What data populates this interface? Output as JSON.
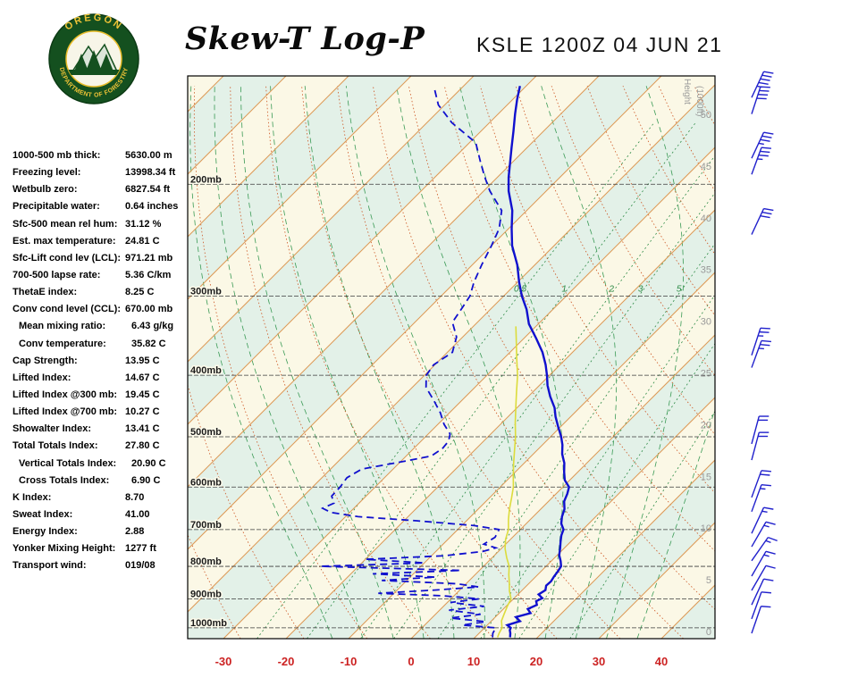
{
  "header": {
    "title": "Skew-T Log-P",
    "station": "KSLE 1200Z 04 JUN 21"
  },
  "logo": {
    "top_text": "OREGON",
    "bottom_text": "DEPARTMENT OF FORESTRY"
  },
  "indices": [
    {
      "label": "1000-500 mb thick:",
      "value": "5630.00 m",
      "indent": false
    },
    {
      "label": "Freezing level:",
      "value": "13998.34 ft",
      "indent": false
    },
    {
      "label": "Wetbulb zero:",
      "value": "6827.54 ft",
      "indent": false
    },
    {
      "label": "Precipitable water:",
      "value": "0.64 inches",
      "indent": false
    },
    {
      "label": "Sfc-500 mean rel hum:",
      "value": "31.12 %",
      "indent": false
    },
    {
      "label": "Est. max temperature:",
      "value": "24.81 C",
      "indent": false
    },
    {
      "label": "Sfc-Lift cond lev (LCL):",
      "value": "971.21 mb",
      "indent": false
    },
    {
      "label": "700-500 lapse rate:",
      "value": "5.36 C/km",
      "indent": false
    },
    {
      "label": "ThetaE index:",
      "value": "8.25 C",
      "indent": false
    },
    {
      "label": "Conv cond level (CCL):",
      "value": "670.00 mb",
      "indent": false
    },
    {
      "label": "Mean mixing ratio:",
      "value": "6.43 g/kg",
      "indent": true
    },
    {
      "label": "Conv temperature:",
      "value": "35.82 C",
      "indent": true
    },
    {
      "label": "Cap Strength:",
      "value": "13.95 C",
      "indent": false
    },
    {
      "label": "Lifted Index:",
      "value": "14.67 C",
      "indent": false
    },
    {
      "label": "Lifted Index @300 mb:",
      "value": "19.45 C",
      "indent": false
    },
    {
      "label": "Lifted Index @700 mb:",
      "value": "10.27 C",
      "indent": false
    },
    {
      "label": "Showalter Index:",
      "value": "13.41 C",
      "indent": false
    },
    {
      "label": "Total Totals Index:",
      "value": "27.80 C",
      "indent": false
    },
    {
      "label": "Vertical Totals Index:",
      "value": "20.90 C",
      "indent": true
    },
    {
      "label": "Cross Totals Index:",
      "value": "6.90 C",
      "indent": true
    },
    {
      "label": "K Index:",
      "value": "8.70",
      "indent": false
    },
    {
      "label": "Sweat Index:",
      "value": "41.00",
      "indent": false
    },
    {
      "label": "Energy Index:",
      "value": "2.88",
      "indent": false
    },
    {
      "label": "Yonker Mixing Height:",
      "value": "1277 ft",
      "indent": false
    },
    {
      "label": "Transport wind:",
      "value": "019/08",
      "indent": false
    }
  ],
  "chart_data": {
    "type": "line",
    "title": "Skew-T Log-P",
    "subtitle": "KSLE 1200Z 04 JUN 21",
    "x_axis": {
      "ticks": [
        -30,
        -20,
        -10,
        0,
        10,
        20,
        30,
        40
      ],
      "skew_deg": 45
    },
    "y_axis": {
      "scale": "log",
      "unit": "mb",
      "ticks": [
        200,
        300,
        400,
        500,
        600,
        700,
        800,
        900,
        1000
      ],
      "range": [
        135,
        1040
      ]
    },
    "height_axis": {
      "label": "Height",
      "sublabel": "(1000ft)",
      "ticks": [
        0,
        5,
        10,
        15,
        20,
        25,
        30,
        35,
        40,
        45,
        50
      ]
    },
    "mixing_ratio_labels": [
      0.5,
      1,
      2,
      3,
      5
    ],
    "grid": {
      "isotherms": {
        "min": -120,
        "max": 40,
        "step": 10
      },
      "dry_adiabats": {
        "min": -30,
        "max": 140,
        "step": 10
      },
      "moist_adiabats": {
        "min": -15,
        "max": 35,
        "step": 5
      },
      "mixing_ratios": [
        0.5,
        1,
        2,
        3,
        5,
        8,
        12,
        20
      ]
    },
    "series": [
      {
        "name": "temperature",
        "units": [
          "mb",
          "C"
        ],
        "style": "solid",
        "points": [
          [
            1035,
            15.6
          ],
          [
            1020,
            15.0
          ],
          [
            1008,
            14.4
          ],
          [
            1000,
            14.2
          ],
          [
            990,
            13.2
          ],
          [
            976,
            14.6
          ],
          [
            962,
            13.3
          ],
          [
            948,
            15.0
          ],
          [
            934,
            13.9
          ],
          [
            920,
            14.7
          ],
          [
            908,
            14.0
          ],
          [
            898,
            14.5
          ],
          [
            886,
            13.3
          ],
          [
            872,
            13.7
          ],
          [
            858,
            13.1
          ],
          [
            845,
            13.2
          ],
          [
            830,
            12.9
          ],
          [
            815,
            12.7
          ],
          [
            800,
            12.4
          ],
          [
            785,
            11.5
          ],
          [
            768,
            10.3
          ],
          [
            750,
            9.4
          ],
          [
            732,
            8.4
          ],
          [
            715,
            7.5
          ],
          [
            700,
            6.9
          ],
          [
            685,
            5.6
          ],
          [
            668,
            4.6
          ],
          [
            650,
            3.8
          ],
          [
            632,
            2.5
          ],
          [
            615,
            1.8
          ],
          [
            600,
            1.0
          ],
          [
            585,
            -0.8
          ],
          [
            568,
            -2.2
          ],
          [
            550,
            -3.6
          ],
          [
            532,
            -5.4
          ],
          [
            515,
            -6.8
          ],
          [
            500,
            -8.3
          ],
          [
            482,
            -10.4
          ],
          [
            465,
            -12.4
          ],
          [
            450,
            -14.0
          ],
          [
            432,
            -16.5
          ],
          [
            415,
            -18.7
          ],
          [
            400,
            -20.4
          ],
          [
            385,
            -22.3
          ],
          [
            368,
            -24.8
          ],
          [
            350,
            -28.0
          ],
          [
            332,
            -31.5
          ],
          [
            315,
            -34.2
          ],
          [
            300,
            -37.1
          ],
          [
            285,
            -39.8
          ],
          [
            268,
            -42.8
          ],
          [
            250,
            -46.7
          ],
          [
            235,
            -49.5
          ],
          [
            220,
            -52.3
          ],
          [
            205,
            -56.0
          ],
          [
            195,
            -58.2
          ],
          [
            185,
            -60.3
          ],
          [
            175,
            -62.5
          ],
          [
            165,
            -64.8
          ],
          [
            155,
            -67.3
          ],
          [
            147,
            -69.3
          ],
          [
            140,
            -71.0
          ]
        ]
      },
      {
        "name": "dewpoint",
        "units": [
          "mb",
          "C"
        ],
        "style": "dashed",
        "points": [
          [
            1035,
            12.8
          ],
          [
            1020,
            12.2
          ],
          [
            1000,
            11.8
          ],
          [
            990,
            6.0
          ],
          [
            978,
            9.2
          ],
          [
            965,
            3.0
          ],
          [
            952,
            7.2
          ],
          [
            938,
            1.5
          ],
          [
            925,
            6.5
          ],
          [
            912,
            0.5
          ],
          [
            900,
            4.5
          ],
          [
            890,
            -2.0
          ],
          [
            882,
            -12.5
          ],
          [
            872,
            -4.0
          ],
          [
            862,
            2.5
          ],
          [
            852,
            -1.5
          ],
          [
            842,
            -14.0
          ],
          [
            832,
            -6.0
          ],
          [
            822,
            -16.5
          ],
          [
            812,
            -3.0
          ],
          [
            800,
            -26.0
          ],
          [
            790,
            -10.0
          ],
          [
            780,
            -20.0
          ],
          [
            770,
            -8.0
          ],
          [
            758,
            -2.5
          ],
          [
            748,
            -1.0
          ],
          [
            738,
            -3.5
          ],
          [
            720,
            -2.8
          ],
          [
            700,
            -3.4
          ],
          [
            690,
            -8.0
          ],
          [
            678,
            -18.0
          ],
          [
            668,
            -28.0
          ],
          [
            658,
            -33.0
          ],
          [
            648,
            -35.0
          ],
          [
            636,
            -34.0
          ],
          [
            620,
            -35.5
          ],
          [
            600,
            -35.6
          ],
          [
            580,
            -36.0
          ],
          [
            562,
            -35.0
          ],
          [
            548,
            -30.0
          ],
          [
            536,
            -26.0
          ],
          [
            522,
            -25.4
          ],
          [
            508,
            -25.6
          ],
          [
            495,
            -26.5
          ],
          [
            478,
            -29.0
          ],
          [
            458,
            -31.5
          ],
          [
            438,
            -34.5
          ],
          [
            418,
            -37.8
          ],
          [
            400,
            -39.7
          ],
          [
            385,
            -40.2
          ],
          [
            368,
            -39.2
          ],
          [
            348,
            -41.0
          ],
          [
            330,
            -44.0
          ],
          [
            312,
            -44.8
          ],
          [
            300,
            -45.4
          ],
          [
            285,
            -47.0
          ],
          [
            268,
            -48.5
          ],
          [
            250,
            -50.0
          ],
          [
            235,
            -51.5
          ],
          [
            220,
            -54.0
          ],
          [
            205,
            -59.0
          ],
          [
            195,
            -62.0
          ],
          [
            185,
            -65.0
          ],
          [
            172,
            -69.0
          ],
          [
            160,
            -76.0
          ],
          [
            150,
            -81.0
          ],
          [
            142,
            -84.0
          ]
        ]
      },
      {
        "name": "wet_bulb",
        "units": [
          "mb",
          "C"
        ],
        "style": "solid",
        "points": [
          [
            1035,
            13.6
          ],
          [
            1020,
            13.2
          ],
          [
            1000,
            12.8
          ],
          [
            975,
            11.6
          ],
          [
            950,
            10.9
          ],
          [
            925,
            10.2
          ],
          [
            900,
            9.6
          ],
          [
            875,
            8.1
          ],
          [
            850,
            6.8
          ],
          [
            825,
            5.4
          ],
          [
            800,
            4.1
          ],
          [
            775,
            2.3
          ],
          [
            750,
            0.6
          ],
          [
            725,
            -0.8
          ],
          [
            700,
            -1.9
          ],
          [
            675,
            -3.5
          ],
          [
            650,
            -5.0
          ],
          [
            625,
            -6.4
          ],
          [
            600,
            -7.9
          ],
          [
            575,
            -9.8
          ],
          [
            550,
            -11.7
          ],
          [
            525,
            -13.6
          ],
          [
            500,
            -15.6
          ],
          [
            475,
            -17.9
          ],
          [
            450,
            -20.2
          ],
          [
            425,
            -22.6
          ],
          [
            400,
            -25.1
          ],
          [
            375,
            -28.1
          ],
          [
            350,
            -31.2
          ],
          [
            335,
            -33.2
          ]
        ]
      }
    ],
    "wind_barbs": [
      {
        "p": 1020,
        "dir": 19,
        "spd": 8
      },
      {
        "p": 968,
        "dir": 20,
        "spd": 10
      },
      {
        "p": 920,
        "dir": 25,
        "spd": 10
      },
      {
        "p": 873,
        "dir": 30,
        "spd": 10
      },
      {
        "p": 829,
        "dir": 30,
        "spd": 15
      },
      {
        "p": 784,
        "dir": 35,
        "spd": 15
      },
      {
        "p": 745,
        "dir": 30,
        "spd": 15
      },
      {
        "p": 710,
        "dir": 25,
        "spd": 15
      },
      {
        "p": 656,
        "dir": 20,
        "spd": 15
      },
      {
        "p": 623,
        "dir": 20,
        "spd": 20
      },
      {
        "p": 544,
        "dir": 15,
        "spd": 20
      },
      {
        "p": 513,
        "dir": 15,
        "spd": 20
      },
      {
        "p": 389,
        "dir": 20,
        "spd": 25
      },
      {
        "p": 372,
        "dir": 18,
        "spd": 25
      },
      {
        "p": 240,
        "dir": 25,
        "spd": 30
      },
      {
        "p": 193,
        "dir": 20,
        "spd": 35
      },
      {
        "p": 182,
        "dir": 25,
        "spd": 35
      },
      {
        "p": 155,
        "dir": 18,
        "spd": 40
      },
      {
        "p": 146,
        "dir": 25,
        "spd": 45
      }
    ],
    "colors": {
      "temperature_line": "#1010CE",
      "dewpoint_line": "#1010CE",
      "wet_bulb_line": "#DCDC3C",
      "wind_barb": "#2020CC",
      "isotherm": "#DD9955",
      "dry_adiabat": "#CC5522",
      "moist_adiabat": "#3A9A55",
      "mixing_ratio": "#2E8B47",
      "band_green": "#E3F1E8",
      "band_cream": "#FBF8E6",
      "pressure_label": "#1A1A1A",
      "temp_tick": "#CC2222",
      "height_label": "#999999"
    }
  }
}
